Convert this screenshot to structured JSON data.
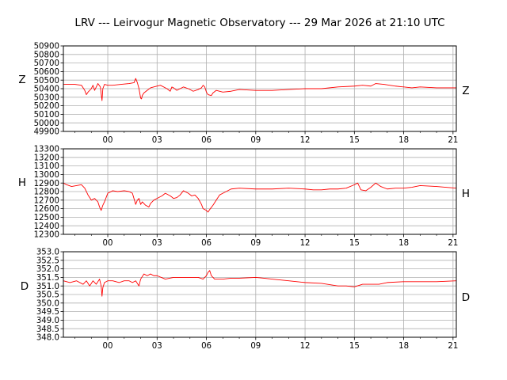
{
  "chart_data": [
    {
      "type": "line",
      "title": "LRV --- Leirvogur Magnetic Observatory --- 29 Mar 2026 at 21:10 UTC",
      "component": "Z",
      "left_label": "Z",
      "right_label": "Z",
      "ylim": [
        49900,
        50900
      ],
      "yticks": [
        49900,
        50000,
        50100,
        50200,
        50300,
        50400,
        50500,
        50600,
        50700,
        50800,
        50900
      ],
      "ytick_labels": [
        "49900",
        "50000",
        "50100",
        "50200",
        "50300",
        "50400",
        "50500",
        "50600",
        "50700",
        "50800",
        "50900"
      ],
      "xlim": [
        -2.7,
        21.2
      ],
      "xticks": [
        0,
        3,
        6,
        9,
        12,
        15,
        18,
        21
      ],
      "xtick_labels": [
        "00",
        "03",
        "06",
        "09",
        "12",
        "15",
        "18",
        "21"
      ],
      "line_color": "#ff0000",
      "series": [
        {
          "name": "Z",
          "x": [
            -2.7,
            -2.0,
            -1.6,
            -1.4,
            -1.3,
            -1.2,
            -1.0,
            -0.9,
            -0.8,
            -0.6,
            -0.45,
            -0.4,
            -0.35,
            -0.3,
            -0.2,
            0.0,
            0.3,
            0.8,
            1.3,
            1.6,
            1.7,
            1.8,
            1.9,
            2.0,
            2.05,
            2.1,
            2.2,
            2.4,
            2.6,
            2.8,
            3.2,
            3.6,
            3.8,
            3.9,
            4.0,
            4.2,
            4.6,
            4.9,
            5.2,
            5.5,
            5.7,
            5.8,
            5.9,
            6.0,
            6.1,
            6.3,
            6.4,
            6.6,
            7.0,
            7.5,
            8.0,
            9.0,
            10.0,
            11.0,
            12.0,
            13.0,
            14.0,
            15.0,
            15.5,
            16.0,
            16.3,
            16.8,
            17.5,
            18.0,
            18.5,
            19.0,
            20.0,
            21.2
          ],
          "y": [
            50450,
            50450,
            50440,
            50380,
            50330,
            50360,
            50400,
            50440,
            50380,
            50460,
            50420,
            50340,
            50260,
            50400,
            50450,
            50440,
            50440,
            50450,
            50460,
            50470,
            50520,
            50470,
            50400,
            50290,
            50280,
            50320,
            50350,
            50380,
            50410,
            50420,
            50440,
            50400,
            50370,
            50420,
            50410,
            50380,
            50420,
            50400,
            50370,
            50390,
            50410,
            50440,
            50420,
            50360,
            50330,
            50320,
            50350,
            50380,
            50360,
            50370,
            50390,
            50380,
            50380,
            50390,
            50400,
            50400,
            50420,
            50430,
            50440,
            50430,
            50460,
            50450,
            50430,
            50420,
            50410,
            50420,
            50410,
            50410
          ]
        }
      ]
    },
    {
      "type": "line",
      "component": "H",
      "left_label": "H",
      "right_label": "H",
      "ylim": [
        12300,
        13300
      ],
      "yticks": [
        12300,
        12400,
        12500,
        12600,
        12700,
        12800,
        12900,
        13000,
        13100,
        13200,
        13300
      ],
      "ytick_labels": [
        "12300",
        "12400",
        "12500",
        "12600",
        "12700",
        "12800",
        "12900",
        "13000",
        "13100",
        "13200",
        "13300"
      ],
      "xlim": [
        -2.7,
        21.2
      ],
      "xticks": [
        0,
        3,
        6,
        9,
        12,
        15,
        18,
        21
      ],
      "xtick_labels": [
        "00",
        "03",
        "06",
        "09",
        "12",
        "15",
        "18",
        "21"
      ],
      "line_color": "#ff0000",
      "series": [
        {
          "name": "H",
          "x": [
            -2.7,
            -2.5,
            -2.2,
            -1.9,
            -1.6,
            -1.4,
            -1.2,
            -1.0,
            -0.8,
            -0.6,
            -0.5,
            -0.4,
            -0.3,
            -0.2,
            0.0,
            0.3,
            0.6,
            1.0,
            1.3,
            1.5,
            1.7,
            1.8,
            1.9,
            2.0,
            2.1,
            2.3,
            2.5,
            2.6,
            2.8,
            3.0,
            3.3,
            3.5,
            3.8,
            4.0,
            4.2,
            4.4,
            4.6,
            4.9,
            5.1,
            5.3,
            5.5,
            5.7,
            5.8,
            6.0,
            6.1,
            6.2,
            6.4,
            6.6,
            6.8,
            7.0,
            7.5,
            8.0,
            9.0,
            10.0,
            11.0,
            12.0,
            12.5,
            13.0,
            13.5,
            14.0,
            14.5,
            15.0,
            15.2,
            15.4,
            15.7,
            16.0,
            16.3,
            16.6,
            17.0,
            17.5,
            18.0,
            18.5,
            19.0,
            20.0,
            21.2
          ],
          "y": [
            12900,
            12880,
            12860,
            12870,
            12880,
            12840,
            12760,
            12700,
            12720,
            12680,
            12620,
            12580,
            12640,
            12680,
            12780,
            12810,
            12800,
            12810,
            12800,
            12780,
            12650,
            12700,
            12720,
            12650,
            12680,
            12640,
            12620,
            12660,
            12700,
            12720,
            12750,
            12780,
            12750,
            12720,
            12730,
            12760,
            12810,
            12780,
            12750,
            12760,
            12720,
            12650,
            12600,
            12580,
            12560,
            12590,
            12640,
            12700,
            12760,
            12780,
            12830,
            12840,
            12830,
            12830,
            12840,
            12830,
            12820,
            12820,
            12830,
            12830,
            12840,
            12880,
            12900,
            12820,
            12810,
            12850,
            12900,
            12860,
            12830,
            12840,
            12840,
            12850,
            12870,
            12860,
            12840
          ]
        }
      ]
    },
    {
      "type": "line",
      "component": "D",
      "left_label": "D",
      "right_label": "D",
      "ylim": [
        348.0,
        353.0
      ],
      "yticks": [
        348.0,
        348.5,
        349.0,
        349.5,
        350.0,
        350.5,
        351.0,
        351.5,
        352.0,
        352.5,
        353.0
      ],
      "ytick_labels": [
        "348.0",
        "348.5",
        "349.0",
        "349.5",
        "350.0",
        "350.5",
        "351.0",
        "351.5",
        "352.0",
        "352.5",
        "353.0"
      ],
      "xlim": [
        -2.7,
        21.2
      ],
      "xticks": [
        0,
        3,
        6,
        9,
        12,
        15,
        18,
        21
      ],
      "xtick_labels": [
        "00",
        "03",
        "06",
        "09",
        "12",
        "15",
        "18",
        "21"
      ],
      "line_color": "#ff0000",
      "series": [
        {
          "name": "D",
          "x": [
            -2.7,
            -2.3,
            -1.9,
            -1.5,
            -1.3,
            -1.1,
            -0.9,
            -0.7,
            -0.5,
            -0.4,
            -0.35,
            -0.3,
            -0.2,
            0.0,
            0.3,
            0.7,
            1.0,
            1.3,
            1.5,
            1.7,
            1.9,
            2.0,
            2.2,
            2.4,
            2.6,
            2.8,
            3.0,
            3.5,
            4.0,
            4.5,
            5.0,
            5.5,
            5.8,
            6.0,
            6.1,
            6.2,
            6.3,
            6.5,
            6.8,
            7.0,
            7.5,
            8.0,
            9.0,
            9.5,
            10.0,
            11.0,
            12.0,
            13.0,
            14.0,
            14.5,
            15.0,
            15.5,
            16.0,
            16.5,
            17.0,
            18.0,
            19.0,
            20.0,
            21.2
          ],
          "y": [
            351.3,
            351.2,
            351.3,
            351.1,
            351.3,
            351.0,
            351.3,
            351.1,
            351.4,
            351.0,
            350.4,
            350.9,
            351.2,
            351.3,
            351.3,
            351.2,
            351.3,
            351.3,
            351.2,
            351.3,
            351.0,
            351.4,
            351.7,
            351.6,
            351.7,
            351.6,
            351.6,
            351.4,
            351.5,
            351.5,
            351.5,
            351.5,
            351.4,
            351.6,
            351.8,
            351.9,
            351.6,
            351.4,
            351.4,
            351.4,
            351.45,
            351.45,
            351.5,
            351.45,
            351.4,
            351.3,
            351.2,
            351.15,
            351.0,
            351.0,
            350.95,
            351.1,
            351.1,
            351.1,
            351.2,
            351.25,
            351.25,
            351.25,
            351.3
          ]
        }
      ]
    }
  ]
}
